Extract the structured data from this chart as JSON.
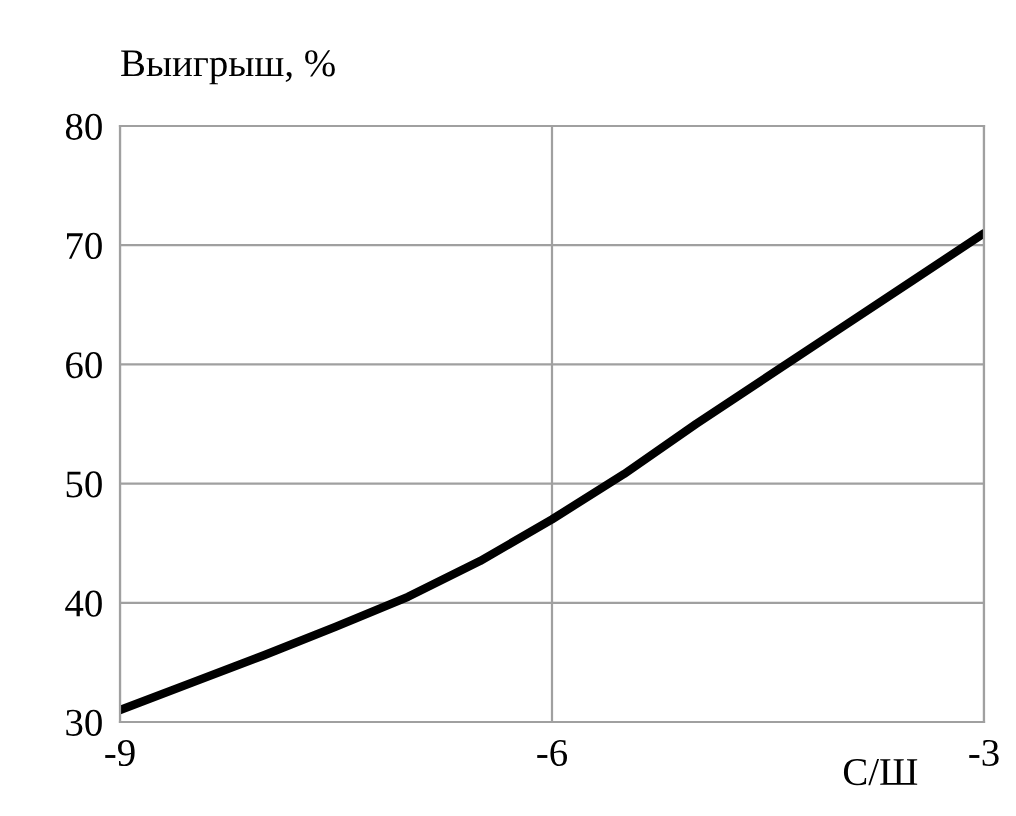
{
  "chart_data": {
    "type": "line",
    "ylabel": "Выигрыш, %",
    "xlabel": "С/Ш",
    "series": [
      {
        "color": "#000000",
        "x": [
          -9,
          -8.5,
          -8,
          -7.5,
          -7,
          -6.5,
          -6,
          -5.5,
          -5,
          -4.5,
          -4,
          -3.5,
          -3
        ],
        "values": [
          31,
          33.3,
          35.6,
          38,
          40.5,
          43.5,
          47,
          50.8,
          55,
          59,
          63,
          67,
          71
        ]
      }
    ],
    "xlim": [
      -9,
      -3
    ],
    "xticks": [
      -9,
      -6,
      -3
    ],
    "ylim": [
      30,
      80
    ],
    "yticks": [
      30,
      40,
      50,
      60,
      70,
      80
    ],
    "grid": true,
    "marker": "none",
    "line_style": "solid"
  }
}
